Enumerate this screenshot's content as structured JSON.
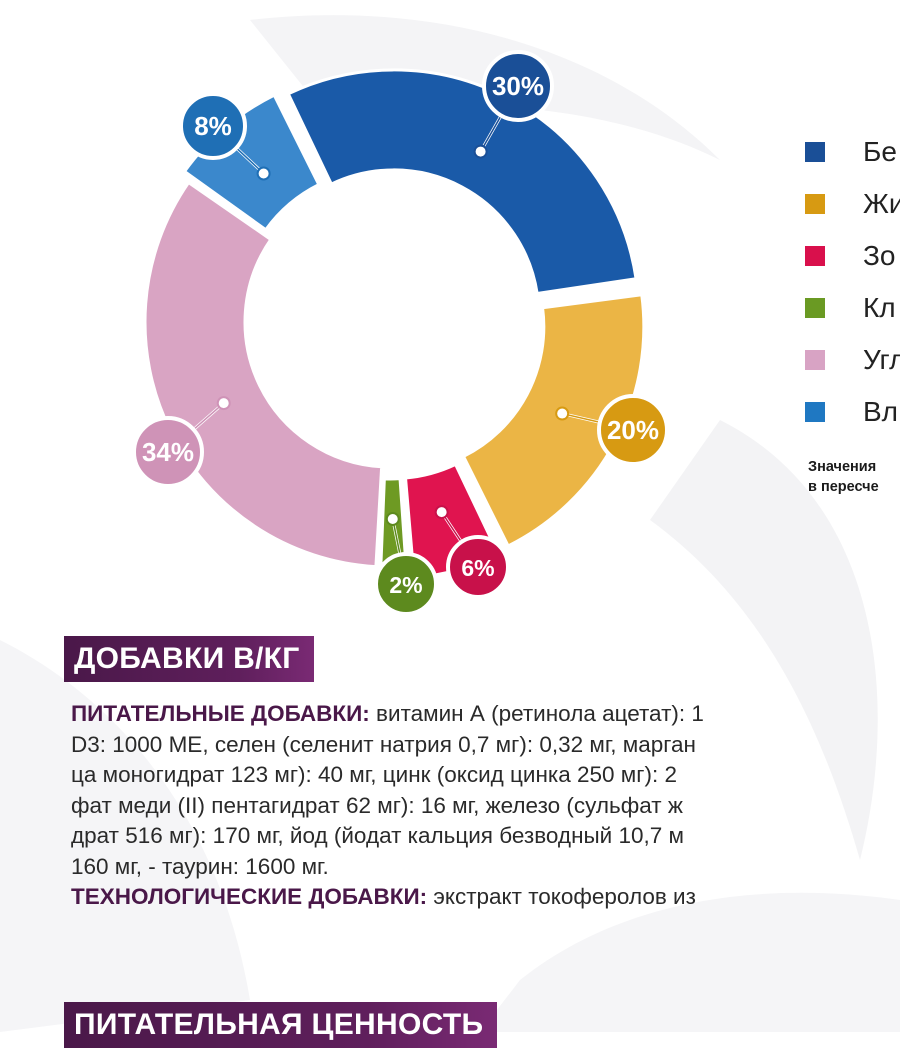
{
  "chart_data": {
    "type": "pie",
    "variant": "donut",
    "slices": [
      {
        "legend": "Бе",
        "value": 30,
        "label": "30%",
        "color": "#1a5aa8",
        "badge": "#1a4f97"
      },
      {
        "legend": "Жи",
        "value": 20,
        "label": "20%",
        "color": "#ebb545",
        "badge": "#d79a12"
      },
      {
        "legend": "Зо",
        "value": 6,
        "label": "6%",
        "color": "#e0144f",
        "badge": "#c8114a"
      },
      {
        "legend": "Кл",
        "value": 2,
        "label": "2%",
        "color": "#6e9a23",
        "badge": "#5d8a1e"
      },
      {
        "legend": "Угл",
        "value": 34,
        "label": "34%",
        "color": "#d9a4c3",
        "badge": "#cf93b7"
      },
      {
        "legend": "Вл",
        "value": 8,
        "label": "8%",
        "color": "#3b88cc",
        "badge": "#1f6fb5"
      }
    ],
    "legend_position": "right",
    "note": "Значения\nв пересче"
  },
  "sections": {
    "additives_title": "ДОБАВКИ В/КГ",
    "value_title": "ПИТАТЕЛЬНАЯ ЦЕННОСТЬ"
  },
  "additives_text": {
    "line1_bold": "ПИТАТЕЛЬНЫЕ ДОБАВКИ:",
    "line1": " витамин А (ретинола ацетат): 1",
    "line2": "D3: 1000 МЕ, селен (селенит натрия 0,7 мг): 0,32 мг, марган",
    "line3": "ца моногидрат 123 мг): 40 мг, цинк (оксид цинка 250 мг): 2",
    "line4": "фат меди (II) пентагидрат 62 мг): 16 мг, железо (сульфат ж",
    "line5": "драт 516 мг): 170 мг, йод (йодат кальция безводный 10,7 м",
    "line6": "160 мг, - таурин: 1600 мг.",
    "line7_bold": "ТЕХНОЛОГИЧЕСКИЕ ДОБАВКИ:",
    "line7": " экстракт токоферолов из"
  }
}
